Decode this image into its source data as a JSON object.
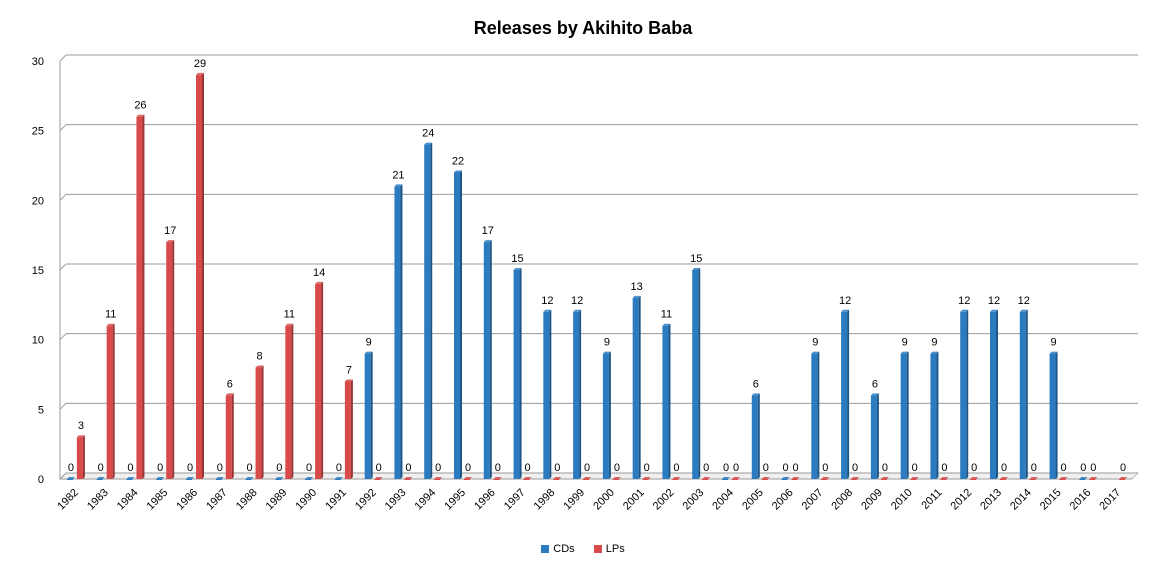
{
  "chart_data": {
    "type": "bar",
    "title": "Releases by Akihito Baba",
    "xlabel": "",
    "ylabel": "",
    "ylim": [
      0,
      30
    ],
    "yticks": [
      0,
      5,
      10,
      15,
      20,
      25,
      30
    ],
    "grid": true,
    "legend_position": "bottom",
    "categories": [
      "1982",
      "1983",
      "1984",
      "1985",
      "1986",
      "1987",
      "1988",
      "1989",
      "1990",
      "1991",
      "1992",
      "1993",
      "1994",
      "1995",
      "1996",
      "1997",
      "1998",
      "1999",
      "2000",
      "2001",
      "2002",
      "2003",
      "2004",
      "2005",
      "2006",
      "2007",
      "2008",
      "2009",
      "2010",
      "2011",
      "2012",
      "2013",
      "2014",
      "2015",
      "2016",
      "2017"
    ],
    "series": [
      {
        "name": "CDs",
        "color": "#2a7bbf",
        "values": [
          0,
          0,
          0,
          0,
          0,
          0,
          0,
          0,
          0,
          0,
          9,
          21,
          24,
          22,
          17,
          15,
          12,
          12,
          9,
          13,
          11,
          15,
          0,
          6,
          0,
          9,
          12,
          6,
          9,
          9,
          12,
          12,
          12,
          9,
          0,
          null
        ],
        "labels": [
          "0",
          "0",
          "0",
          "0",
          "0",
          "0",
          "0",
          "0",
          "0",
          "0",
          "9",
          "21",
          "24",
          "22",
          "17",
          "15",
          "12",
          "12",
          "9",
          "13",
          "11",
          "15",
          "0",
          "6",
          "0",
          "9",
          "12",
          "6",
          "9",
          "9",
          "12",
          "12",
          "12",
          "9",
          "0",
          ""
        ]
      },
      {
        "name": "LPs",
        "color": "#d94a4a",
        "values": [
          3,
          11,
          26,
          17,
          29,
          6,
          8,
          11,
          14,
          7,
          0,
          0,
          0,
          0,
          0,
          0,
          0,
          0,
          0,
          0,
          0,
          0,
          0,
          0,
          0,
          0,
          0,
          0,
          0,
          0,
          0,
          0,
          0,
          0,
          0,
          0
        ],
        "labels": [
          "3",
          "11",
          "26",
          "17",
          "29",
          "6",
          "8",
          "11",
          "14",
          "7",
          "0",
          "0",
          "0",
          "0",
          "0",
          "0",
          "0",
          "0",
          "0",
          "0",
          "0",
          "0",
          "0",
          "0",
          "0",
          "0",
          "0",
          "0",
          "0",
          "0",
          "0",
          "0",
          "0",
          "0",
          "0",
          "0"
        ]
      }
    ]
  }
}
